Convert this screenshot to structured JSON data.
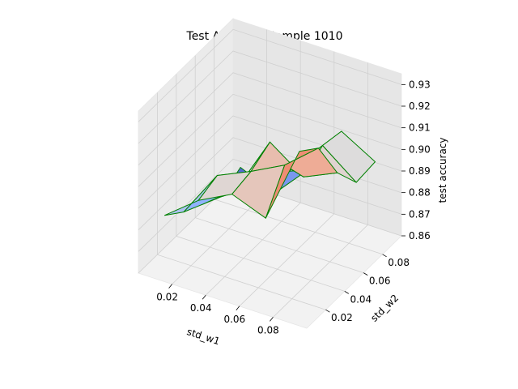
{
  "chart_data": {
    "type": "surface3d",
    "title": "Test Accuracy Sample 1010",
    "xlabel": "std_w1",
    "ylabel": "std_w2",
    "zlabel": "test accuracy",
    "x_ticks": [
      "0.02",
      "0.04",
      "0.06",
      "0.08"
    ],
    "y_ticks": [
      "0.02",
      "0.04",
      "0.06",
      "0.08"
    ],
    "z_ticks": [
      "0.86",
      "0.87",
      "0.88",
      "0.89",
      "0.90",
      "0.91",
      "0.92",
      "0.93"
    ],
    "xlim": [
      0.0,
      0.1
    ],
    "ylim": [
      0.0,
      0.1
    ],
    "zlim": [
      0.86,
      0.935
    ],
    "x": [
      0.01,
      0.03,
      0.05,
      0.07,
      0.09
    ],
    "y": [
      0.01,
      0.03,
      0.05,
      0.07,
      0.09
    ],
    "z": [
      [
        0.885,
        0.897,
        0.905,
        0.899,
        0.935
      ],
      [
        0.878,
        0.9,
        0.907,
        0.915,
        0.928
      ],
      [
        0.873,
        0.885,
        0.912,
        0.901,
        0.908
      ],
      [
        0.868,
        0.878,
        0.89,
        0.907,
        0.895
      ],
      [
        0.873,
        0.866,
        0.882,
        0.905,
        0.896
      ]
    ],
    "colormap": "coolwarm",
    "edge_color": "#008000",
    "grid": true
  }
}
